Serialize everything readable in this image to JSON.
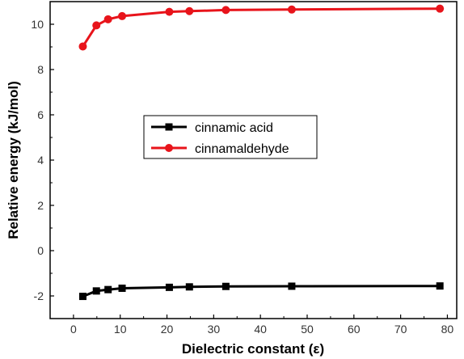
{
  "chart_data": {
    "type": "line",
    "title": "",
    "xlabel": "Dielectric constant (ε)",
    "ylabel": "Relative energy (kJ/mol)",
    "xlim": [
      -5,
      82
    ],
    "ylim": [
      -3,
      11
    ],
    "xticks": [
      0,
      10,
      20,
      30,
      40,
      50,
      60,
      70,
      80
    ],
    "yticks": [
      -2,
      0,
      2,
      4,
      6,
      8,
      10
    ],
    "x": [
      2.0,
      4.9,
      7.4,
      10.4,
      20.5,
      24.8,
      32.6,
      46.7,
      78.4
    ],
    "series": [
      {
        "name": "cinnamic acid",
        "color": "#000000",
        "marker": "square",
        "values": [
          -2.02,
          -1.78,
          -1.72,
          -1.66,
          -1.62,
          -1.6,
          -1.58,
          -1.57,
          -1.56
        ]
      },
      {
        "name": "cinnamaldehyde",
        "color": "#e8141b",
        "marker": "circle",
        "values": [
          9.02,
          9.95,
          10.22,
          10.36,
          10.55,
          10.58,
          10.63,
          10.65,
          10.69
        ]
      }
    ],
    "legend": "center",
    "grid": false
  }
}
